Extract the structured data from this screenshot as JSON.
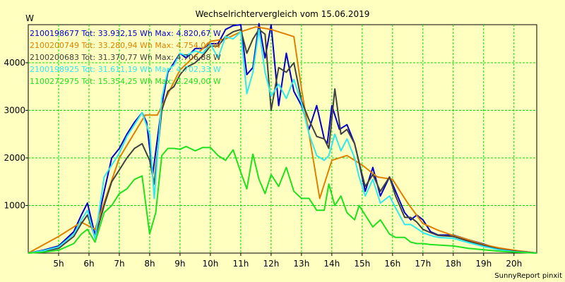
{
  "chart_data": {
    "type": "line",
    "title": "Wechselrichtervergleich vom 15.06.2019",
    "ylabel": "W",
    "xlabel": "",
    "footer": "SunnyReport pinxit",
    "xlim": [
      4.0,
      20.75
    ],
    "ylim": [
      0,
      4800
    ],
    "grid": true,
    "legend_position": "top-left",
    "x_ticks": [
      {
        "value": 5,
        "label": "5h"
      },
      {
        "value": 6,
        "label": "6h"
      },
      {
        "value": 7,
        "label": "7h"
      },
      {
        "value": 8,
        "label": "8h"
      },
      {
        "value": 9,
        "label": "9h"
      },
      {
        "value": 10,
        "label": "10h"
      },
      {
        "value": 11,
        "label": "11h"
      },
      {
        "value": 12,
        "label": "12h"
      },
      {
        "value": 13,
        "label": "13h"
      },
      {
        "value": 14,
        "label": "14h"
      },
      {
        "value": 15,
        "label": "15h"
      },
      {
        "value": 16,
        "label": "16h"
      },
      {
        "value": 17,
        "label": "17h"
      },
      {
        "value": 18,
        "label": "18h"
      },
      {
        "value": 19,
        "label": "19h"
      },
      {
        "value": 20,
        "label": "20h"
      }
    ],
    "y_ticks": [
      {
        "value": 1000,
        "label": "1000"
      },
      {
        "value": 2000,
        "label": "2000"
      },
      {
        "value": 3000,
        "label": "3000"
      },
      {
        "value": 4000,
        "label": "4000"
      }
    ],
    "series": [
      {
        "name": "2100198677 Tot: 33.932,15 Wh Max: 4.820,67 W",
        "color": "#0000c8",
        "points": [
          [
            4.0,
            0
          ],
          [
            4.5,
            60
          ],
          [
            5.0,
            150
          ],
          [
            5.5,
            450
          ],
          [
            5.75,
            800
          ],
          [
            5.95,
            1050
          ],
          [
            6.2,
            380
          ],
          [
            6.5,
            1300
          ],
          [
            6.75,
            2000
          ],
          [
            7.0,
            2200
          ],
          [
            7.25,
            2500
          ],
          [
            7.5,
            2750
          ],
          [
            7.75,
            2950
          ],
          [
            7.9,
            2750
          ],
          [
            8.1,
            1650
          ],
          [
            8.4,
            3100
          ],
          [
            8.6,
            3800
          ],
          [
            8.8,
            4000
          ],
          [
            9.0,
            4200
          ],
          [
            9.2,
            4100
          ],
          [
            9.5,
            4300
          ],
          [
            9.75,
            4300
          ],
          [
            10.0,
            4400
          ],
          [
            10.25,
            4400
          ],
          [
            10.5,
            4700
          ],
          [
            10.75,
            4780
          ],
          [
            11.0,
            4800
          ],
          [
            11.2,
            3750
          ],
          [
            11.4,
            3900
          ],
          [
            11.6,
            4820
          ],
          [
            11.8,
            4100
          ],
          [
            12.0,
            4800
          ],
          [
            12.25,
            3100
          ],
          [
            12.5,
            4200
          ],
          [
            12.75,
            3400
          ],
          [
            13.0,
            3100
          ],
          [
            13.25,
            2600
          ],
          [
            13.5,
            3100
          ],
          [
            13.75,
            2400
          ],
          [
            13.85,
            2300
          ],
          [
            14.0,
            3100
          ],
          [
            14.25,
            2600
          ],
          [
            14.5,
            2700
          ],
          [
            14.75,
            2300
          ],
          [
            14.9,
            1900
          ],
          [
            15.1,
            1300
          ],
          [
            15.35,
            1800
          ],
          [
            15.6,
            1200
          ],
          [
            15.9,
            1600
          ],
          [
            16.1,
            1300
          ],
          [
            16.4,
            850
          ],
          [
            16.6,
            700
          ],
          [
            16.8,
            800
          ],
          [
            17.0,
            700
          ],
          [
            17.25,
            450
          ],
          [
            17.5,
            380
          ],
          [
            18.0,
            380
          ],
          [
            18.5,
            280
          ],
          [
            19.0,
            190
          ],
          [
            19.5,
            90
          ],
          [
            20.0,
            50
          ],
          [
            20.5,
            20
          ],
          [
            20.75,
            0
          ]
        ]
      },
      {
        "name": "2100200749 Tot: 33.280,94 Wh Max: 4.754,00 W",
        "color": "#e08000",
        "points": [
          [
            4.0,
            0
          ],
          [
            5.0,
            350
          ],
          [
            5.75,
            650
          ],
          [
            6.2,
            500
          ],
          [
            7.0,
            2000
          ],
          [
            7.85,
            2900
          ],
          [
            8.25,
            2900
          ],
          [
            9.0,
            3850
          ],
          [
            9.5,
            4150
          ],
          [
            10.0,
            4450
          ],
          [
            10.5,
            4500
          ],
          [
            11.0,
            4650
          ],
          [
            11.5,
            4754
          ],
          [
            12.0,
            4700
          ],
          [
            12.75,
            4550
          ],
          [
            13.0,
            3450
          ],
          [
            13.6,
            1150
          ],
          [
            14.0,
            1950
          ],
          [
            14.5,
            2050
          ],
          [
            15.0,
            1850
          ],
          [
            15.5,
            1600
          ],
          [
            16.0,
            1550
          ],
          [
            16.5,
            1050
          ],
          [
            17.0,
            620
          ],
          [
            17.5,
            480
          ],
          [
            18.0,
            370
          ],
          [
            18.5,
            280
          ],
          [
            19.0,
            180
          ],
          [
            19.5,
            110
          ],
          [
            20.0,
            60
          ],
          [
            20.75,
            0
          ]
        ]
      },
      {
        "name": "2100200683 Tot: 31.370,77 Wh Max: 4.706,88 W",
        "color": "#404040",
        "points": [
          [
            4.0,
            0
          ],
          [
            4.5,
            40
          ],
          [
            5.0,
            100
          ],
          [
            5.5,
            350
          ],
          [
            5.75,
            620
          ],
          [
            5.95,
            800
          ],
          [
            6.2,
            330
          ],
          [
            6.5,
            1000
          ],
          [
            6.75,
            1500
          ],
          [
            7.0,
            1750
          ],
          [
            7.25,
            2000
          ],
          [
            7.5,
            2200
          ],
          [
            7.75,
            2300
          ],
          [
            8.0,
            1950
          ],
          [
            8.15,
            1450
          ],
          [
            8.4,
            3000
          ],
          [
            8.6,
            3400
          ],
          [
            8.8,
            3500
          ],
          [
            9.0,
            3750
          ],
          [
            9.2,
            3900
          ],
          [
            9.5,
            4000
          ],
          [
            9.75,
            4150
          ],
          [
            10.0,
            4350
          ],
          [
            10.25,
            4350
          ],
          [
            10.5,
            4550
          ],
          [
            10.75,
            4650
          ],
          [
            11.0,
            4700
          ],
          [
            11.2,
            4200
          ],
          [
            11.4,
            4500
          ],
          [
            11.6,
            4700
          ],
          [
            11.8,
            4600
          ],
          [
            12.0,
            3000
          ],
          [
            12.25,
            3900
          ],
          [
            12.5,
            3800
          ],
          [
            12.75,
            4000
          ],
          [
            13.0,
            3200
          ],
          [
            13.25,
            2800
          ],
          [
            13.5,
            2450
          ],
          [
            13.75,
            2400
          ],
          [
            13.9,
            2200
          ],
          [
            14.1,
            3450
          ],
          [
            14.3,
            2500
          ],
          [
            14.5,
            2600
          ],
          [
            14.75,
            2300
          ],
          [
            14.9,
            1900
          ],
          [
            15.1,
            1400
          ],
          [
            15.35,
            1650
          ],
          [
            15.6,
            1300
          ],
          [
            15.9,
            1600
          ],
          [
            16.1,
            1200
          ],
          [
            16.4,
            750
          ],
          [
            16.6,
            750
          ],
          [
            16.8,
            650
          ],
          [
            17.0,
            500
          ],
          [
            17.25,
            430
          ],
          [
            17.5,
            370
          ],
          [
            18.0,
            350
          ],
          [
            18.5,
            250
          ],
          [
            19.0,
            160
          ],
          [
            19.5,
            80
          ],
          [
            20.0,
            40
          ],
          [
            20.75,
            0
          ]
        ]
      },
      {
        "name": "2100198925 Tot: 31.611,19 Wh Max: 4.702,33 W",
        "color": "#30e8f0",
        "points": [
          [
            4.0,
            0
          ],
          [
            4.5,
            50
          ],
          [
            5.0,
            130
          ],
          [
            5.5,
            400
          ],
          [
            5.75,
            700
          ],
          [
            5.95,
            900
          ],
          [
            6.2,
            300
          ],
          [
            6.5,
            1600
          ],
          [
            6.75,
            1850
          ],
          [
            7.0,
            2100
          ],
          [
            7.25,
            2450
          ],
          [
            7.5,
            2700
          ],
          [
            7.75,
            2950
          ],
          [
            8.0,
            2500
          ],
          [
            8.15,
            1150
          ],
          [
            8.4,
            3250
          ],
          [
            8.6,
            3850
          ],
          [
            8.8,
            3950
          ],
          [
            9.0,
            4200
          ],
          [
            9.2,
            4150
          ],
          [
            9.5,
            4250
          ],
          [
            9.75,
            4200
          ],
          [
            10.0,
            4400
          ],
          [
            10.25,
            4100
          ],
          [
            10.5,
            4550
          ],
          [
            10.75,
            4500
          ],
          [
            11.0,
            4650
          ],
          [
            11.2,
            3350
          ],
          [
            11.4,
            3800
          ],
          [
            11.6,
            4700
          ],
          [
            11.8,
            3800
          ],
          [
            12.0,
            3300
          ],
          [
            12.25,
            3550
          ],
          [
            12.5,
            3250
          ],
          [
            12.75,
            3650
          ],
          [
            13.0,
            3150
          ],
          [
            13.25,
            2500
          ],
          [
            13.5,
            2050
          ],
          [
            13.75,
            1950
          ],
          [
            13.9,
            2050
          ],
          [
            14.1,
            2500
          ],
          [
            14.3,
            2150
          ],
          [
            14.5,
            2400
          ],
          [
            14.75,
            2000
          ],
          [
            14.9,
            1600
          ],
          [
            15.1,
            1200
          ],
          [
            15.35,
            1550
          ],
          [
            15.6,
            1050
          ],
          [
            15.9,
            1200
          ],
          [
            16.1,
            950
          ],
          [
            16.4,
            600
          ],
          [
            16.6,
            600
          ],
          [
            16.8,
            520
          ],
          [
            17.0,
            430
          ],
          [
            17.25,
            370
          ],
          [
            17.5,
            330
          ],
          [
            18.0,
            310
          ],
          [
            18.5,
            220
          ],
          [
            19.0,
            140
          ],
          [
            19.5,
            70
          ],
          [
            20.0,
            30
          ],
          [
            20.75,
            0
          ]
        ]
      },
      {
        "name": "1100272975 Tot: 15.354,25 Wh Max: 2.249,00 W",
        "color": "#20e020",
        "points": [
          [
            4.0,
            0
          ],
          [
            4.5,
            20
          ],
          [
            5.0,
            60
          ],
          [
            5.5,
            200
          ],
          [
            5.75,
            400
          ],
          [
            5.95,
            500
          ],
          [
            6.2,
            230
          ],
          [
            6.5,
            850
          ],
          [
            6.75,
            1000
          ],
          [
            7.0,
            1250
          ],
          [
            7.25,
            1350
          ],
          [
            7.5,
            1550
          ],
          [
            7.75,
            1620
          ],
          [
            8.0,
            400
          ],
          [
            8.2,
            850
          ],
          [
            8.4,
            2050
          ],
          [
            8.6,
            2200
          ],
          [
            8.8,
            2200
          ],
          [
            9.0,
            2180
          ],
          [
            9.2,
            2240
          ],
          [
            9.5,
            2150
          ],
          [
            9.75,
            2220
          ],
          [
            10.0,
            2220
          ],
          [
            10.25,
            2050
          ],
          [
            10.5,
            1950
          ],
          [
            10.75,
            2170
          ],
          [
            11.0,
            1700
          ],
          [
            11.2,
            1350
          ],
          [
            11.4,
            2080
          ],
          [
            11.6,
            1550
          ],
          [
            11.8,
            1250
          ],
          [
            12.0,
            1650
          ],
          [
            12.25,
            1400
          ],
          [
            12.5,
            1800
          ],
          [
            12.75,
            1300
          ],
          [
            13.0,
            1150
          ],
          [
            13.25,
            1150
          ],
          [
            13.5,
            900
          ],
          [
            13.75,
            900
          ],
          [
            13.9,
            1450
          ],
          [
            14.1,
            1000
          ],
          [
            14.3,
            1200
          ],
          [
            14.5,
            850
          ],
          [
            14.75,
            700
          ],
          [
            14.9,
            1000
          ],
          [
            15.1,
            800
          ],
          [
            15.35,
            550
          ],
          [
            15.6,
            700
          ],
          [
            15.9,
            400
          ],
          [
            16.1,
            330
          ],
          [
            16.4,
            330
          ],
          [
            16.6,
            230
          ],
          [
            16.8,
            200
          ],
          [
            17.0,
            200
          ],
          [
            17.25,
            180
          ],
          [
            17.5,
            170
          ],
          [
            18.0,
            150
          ],
          [
            18.5,
            100
          ],
          [
            19.0,
            70
          ],
          [
            19.5,
            40
          ],
          [
            20.0,
            20
          ],
          [
            20.75,
            0
          ]
        ]
      }
    ]
  }
}
